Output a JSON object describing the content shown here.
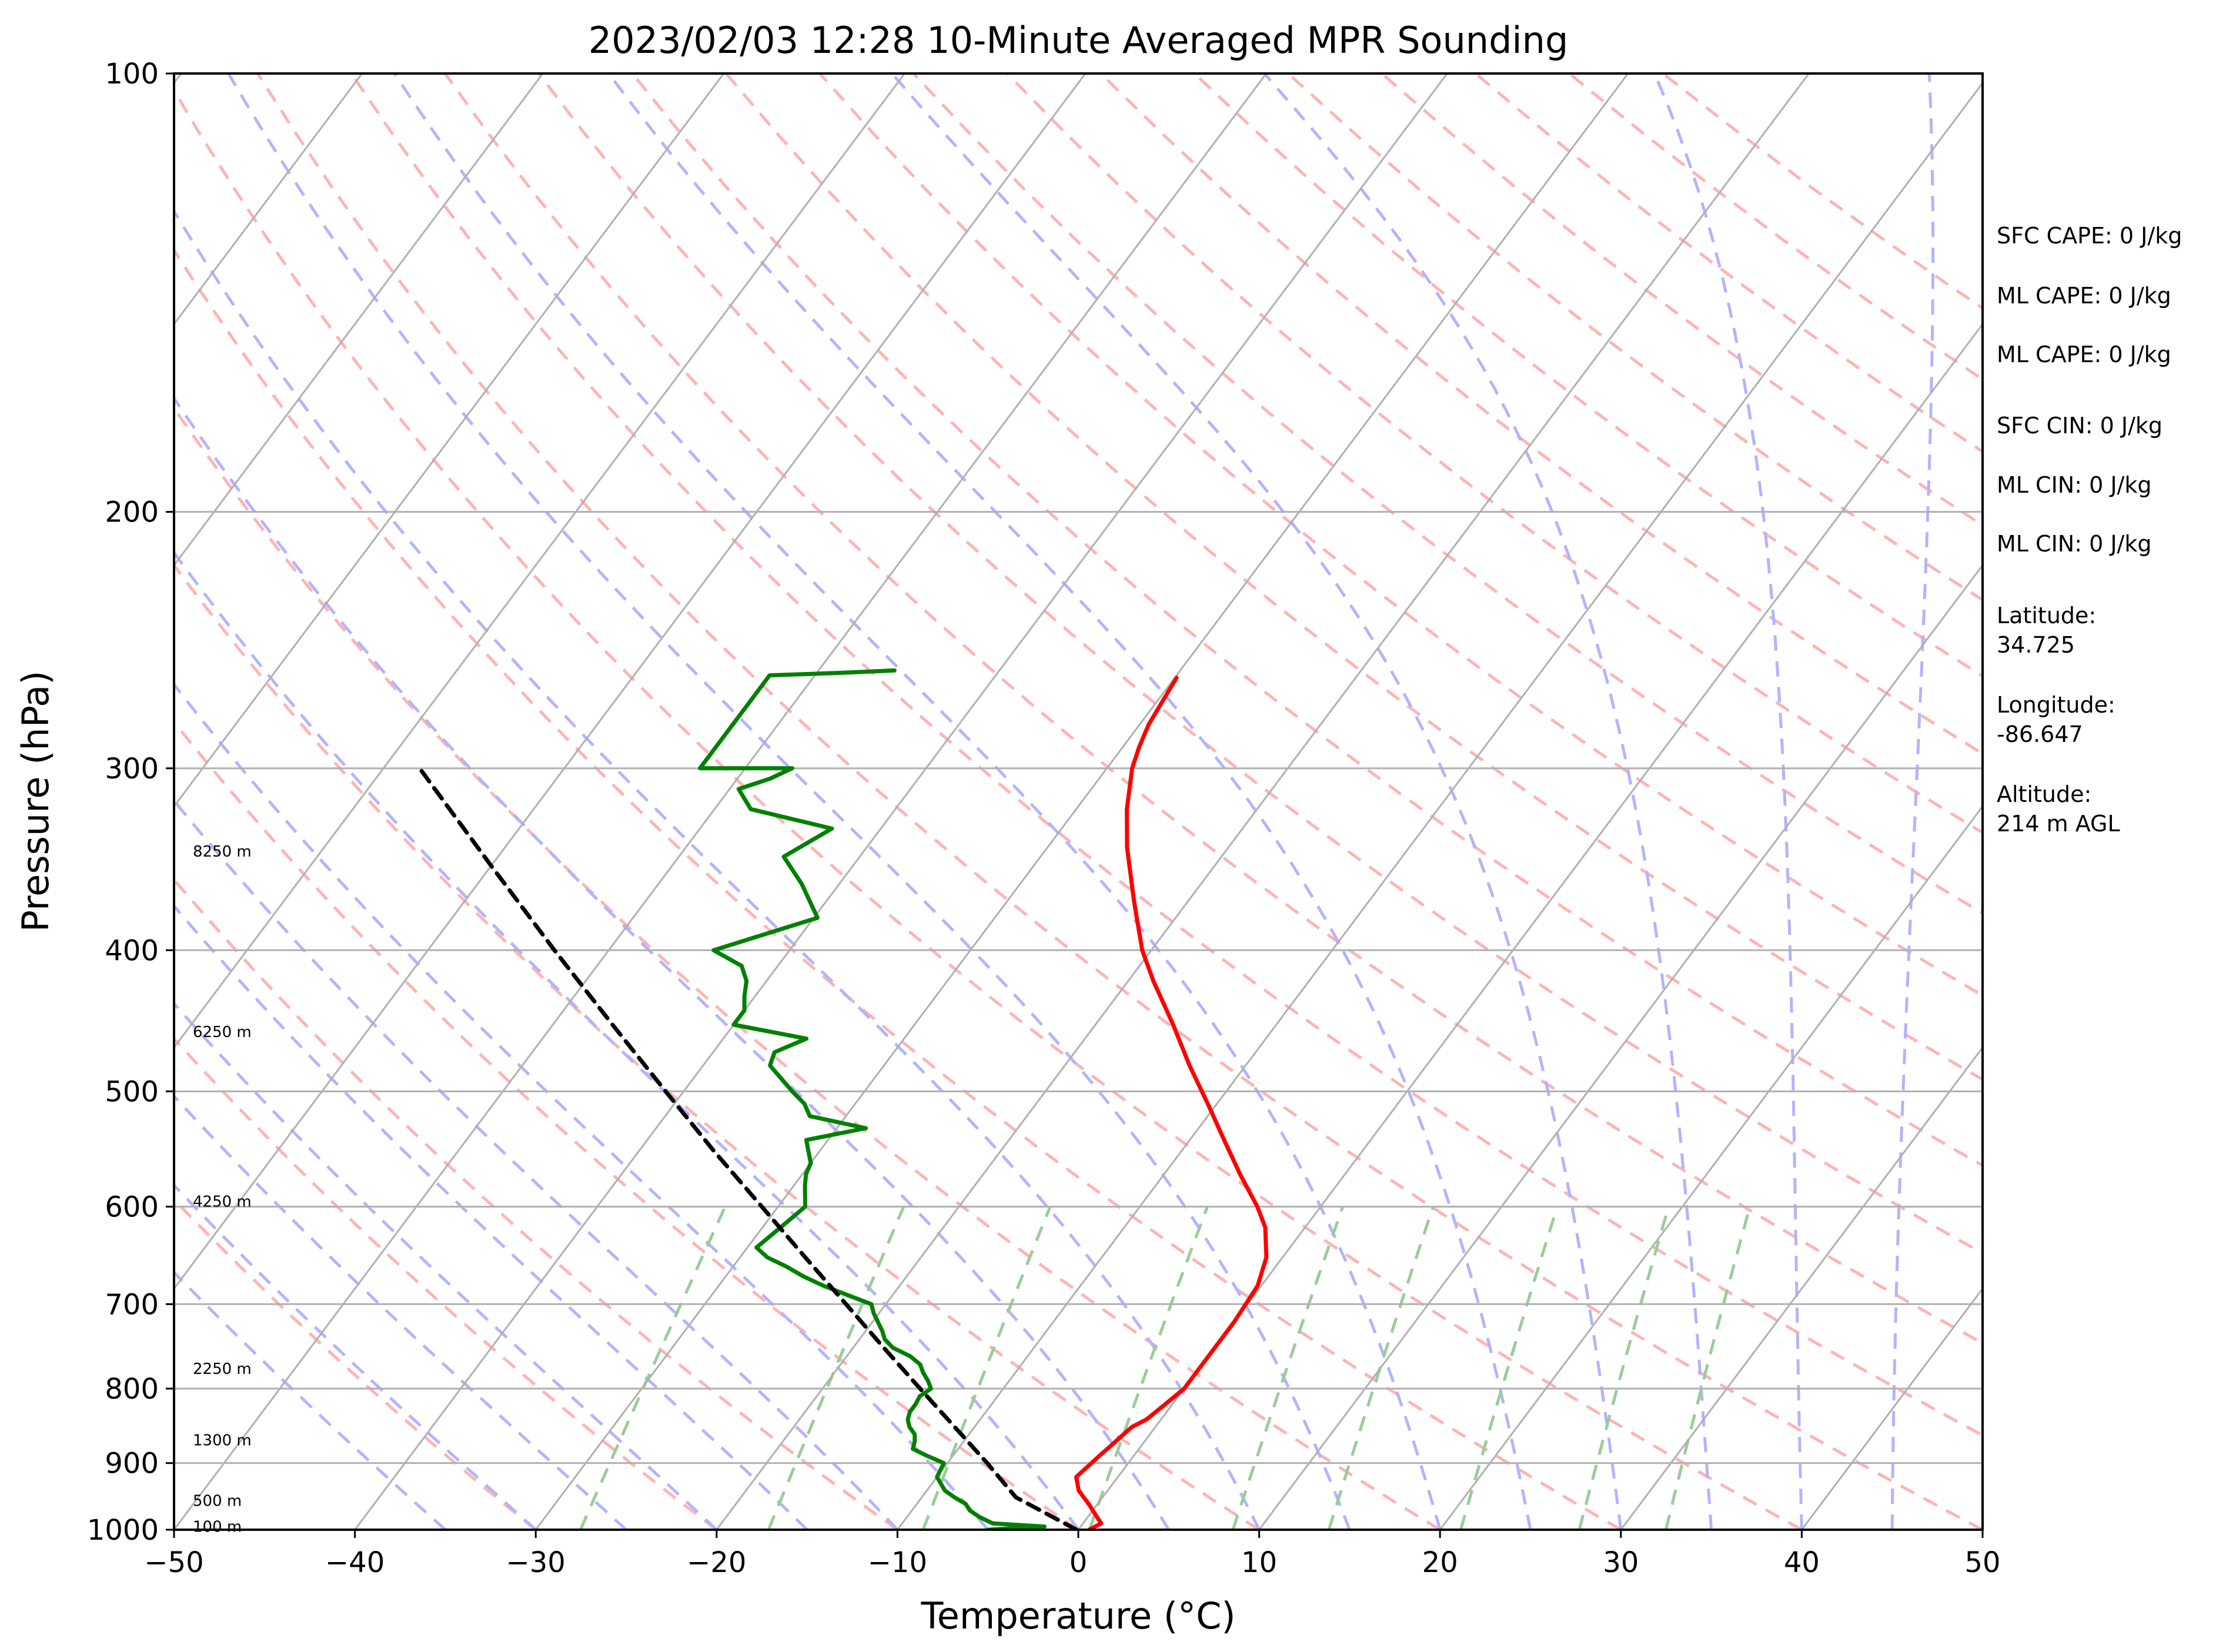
{
  "chart_data": {
    "type": "line",
    "title": "2023/02/03 12:28 10-Minute Averaged MPR Sounding",
    "xlabel": "Temperature (°C)",
    "ylabel": "Pressure (hPa)",
    "xlim": [
      -50,
      50
    ],
    "ylim": [
      1000,
      100
    ],
    "y_scale": "log",
    "skew": "skew-T",
    "grid": true,
    "x_ticks": [
      "−50",
      "−40",
      "−30",
      "−20",
      "−10",
      "0",
      "10",
      "20",
      "30",
      "40",
      "50"
    ],
    "y_ticks": [
      "100",
      "200",
      "300",
      "400",
      "500",
      "600",
      "700",
      "800",
      "900",
      "1000"
    ],
    "height_labels": [
      {
        "text": "100 m",
        "p": 995
      },
      {
        "text": "500 m",
        "p": 955
      },
      {
        "text": "1300 m",
        "p": 868
      },
      {
        "text": "2250 m",
        "p": 775
      },
      {
        "text": "4250 m",
        "p": 595
      },
      {
        "text": "6250 m",
        "p": 455
      },
      {
        "text": "8250 m",
        "p": 342
      }
    ],
    "series": [
      {
        "color": "#ff0000",
        "points": [
          [
            1000,
            0.6
          ],
          [
            990,
            1.0
          ],
          [
            980,
            0.5
          ],
          [
            960,
            -0.5
          ],
          [
            940,
            -1.6
          ],
          [
            920,
            -2.3
          ],
          [
            905,
            -2.1
          ],
          [
            890,
            -1.9
          ],
          [
            870,
            -1.6
          ],
          [
            850,
            -1.3
          ],
          [
            840,
            -0.8
          ],
          [
            825,
            -0.5
          ],
          [
            800,
            0.0
          ],
          [
            780,
            0.0
          ],
          [
            750,
            0.0
          ],
          [
            720,
            0.0
          ],
          [
            680,
            -0.2
          ],
          [
            650,
            -0.9
          ],
          [
            620,
            -2.2
          ],
          [
            600,
            -3.5
          ],
          [
            570,
            -5.8
          ],
          [
            540,
            -8.1
          ],
          [
            510,
            -10.5
          ],
          [
            480,
            -13.1
          ],
          [
            450,
            -15.7
          ],
          [
            420,
            -18.6
          ],
          [
            400,
            -20.5
          ],
          [
            370,
            -23.0
          ],
          [
            340,
            -25.6
          ],
          [
            320,
            -27.2
          ],
          [
            300,
            -28.6
          ],
          [
            290,
            -29.1
          ],
          [
            280,
            -29.5
          ],
          [
            270,
            -29.7
          ],
          [
            260,
            -29.9
          ]
        ]
      },
      {
        "color": "#008000",
        "points": [
          [
            1000,
            -5.0
          ],
          [
            995,
            -2.0
          ],
          [
            990,
            -5.0
          ],
          [
            980,
            -6.0
          ],
          [
            970,
            -6.8
          ],
          [
            960,
            -7.3
          ],
          [
            950,
            -8.2
          ],
          [
            940,
            -9.0
          ],
          [
            930,
            -9.5
          ],
          [
            920,
            -10.0
          ],
          [
            910,
            -10.1
          ],
          [
            900,
            -10.2
          ],
          [
            890,
            -11.4
          ],
          [
            880,
            -12.5
          ],
          [
            870,
            -12.7
          ],
          [
            860,
            -13.0
          ],
          [
            850,
            -13.6
          ],
          [
            840,
            -14.0
          ],
          [
            830,
            -14.2
          ],
          [
            820,
            -14.2
          ],
          [
            810,
            -14.3
          ],
          [
            800,
            -14.0
          ],
          [
            790,
            -14.5
          ],
          [
            780,
            -15.1
          ],
          [
            770,
            -15.6
          ],
          [
            760,
            -16.5
          ],
          [
            750,
            -17.8
          ],
          [
            740,
            -18.6
          ],
          [
            730,
            -19.1
          ],
          [
            720,
            -19.7
          ],
          [
            710,
            -20.3
          ],
          [
            700,
            -20.8
          ],
          [
            690,
            -22.5
          ],
          [
            680,
            -24.2
          ],
          [
            670,
            -25.7
          ],
          [
            660,
            -27.0
          ],
          [
            650,
            -28.5
          ],
          [
            640,
            -29.5
          ],
          [
            620,
            -29.0
          ],
          [
            600,
            -28.5
          ],
          [
            580,
            -29.4
          ],
          [
            570,
            -29.8
          ],
          [
            560,
            -30.0
          ],
          [
            550,
            -30.6
          ],
          [
            540,
            -31.2
          ],
          [
            530,
            -28.4
          ],
          [
            520,
            -32.0
          ],
          [
            510,
            -32.8
          ],
          [
            500,
            -34.0
          ],
          [
            480,
            -36.3
          ],
          [
            470,
            -36.6
          ],
          [
            460,
            -35.4
          ],
          [
            450,
            -40.0
          ],
          [
            440,
            -40.0
          ],
          [
            430,
            -40.6
          ],
          [
            420,
            -41.1
          ],
          [
            410,
            -42.0
          ],
          [
            400,
            -44.2
          ],
          [
            380,
            -39.8
          ],
          [
            360,
            -42.1
          ],
          [
            345,
            -44.2
          ],
          [
            330,
            -42.7
          ],
          [
            320,
            -48.0
          ],
          [
            310,
            -49.5
          ],
          [
            305,
            -48.2
          ],
          [
            300,
            -47.4
          ],
          [
            300,
            -52.5
          ],
          [
            259,
            -52.5
          ],
          [
            258,
            -48.8
          ],
          [
            257,
            -45.8
          ]
        ]
      },
      {
        "color": "#000000",
        "dashed": true,
        "points": [
          [
            1000,
            -0.1
          ],
          [
            950,
            -4.8
          ],
          [
            900,
            -7.8
          ],
          [
            850,
            -11.1
          ],
          [
            800,
            -14.6
          ],
          [
            750,
            -18.3
          ],
          [
            700,
            -22.2
          ],
          [
            650,
            -26.4
          ],
          [
            600,
            -30.9
          ],
          [
            550,
            -35.8
          ],
          [
            500,
            -41.0
          ],
          [
            450,
            -46.7
          ],
          [
            400,
            -53.0
          ],
          [
            350,
            -60.0
          ],
          [
            300,
            -68.0
          ]
        ]
      }
    ],
    "background_lines": {
      "isotherms": [
        -150,
        -140,
        -130,
        -120,
        -110,
        -100,
        -90,
        -80,
        -70,
        -60,
        -50,
        -40,
        -30,
        -20,
        -10,
        0,
        10,
        20,
        30,
        40,
        50
      ],
      "dry_adiabats_theta_k": [
        -30,
        -20,
        -10,
        0,
        10,
        20,
        30,
        40,
        50,
        60,
        70,
        80,
        90,
        100,
        110,
        120,
        130,
        140,
        150,
        160,
        170,
        180,
        190,
        200
      ],
      "moist_adiabats_start_c": [
        -35,
        -30,
        -25,
        -20,
        -15,
        -10,
        -5,
        0,
        5,
        10,
        15,
        20,
        25,
        30,
        35,
        40,
        45
      ],
      "mixing_ratios_g_kg": [
        0.4,
        1,
        2,
        4,
        7,
        10,
        16,
        24,
        32
      ]
    },
    "colors": {
      "temperature": "#ff0000",
      "dewpoint": "#008000",
      "parcel": "#000000",
      "isotherm": "#b0b0b0",
      "dry_adiabat": "#ffb3b3",
      "moist_adiabat": "#b3b3ff",
      "mixing_ratio": "#99cc99"
    }
  },
  "annotations": [
    {
      "text": "SFC CAPE: 0 J/kg"
    },
    {
      "text": "ML CAPE: 0 J/kg"
    },
    {
      "text": "ML CAPE: 0 J/kg"
    },
    {
      "text": "SFC CIN: 0 J/kg"
    },
    {
      "text": "ML CIN: 0 J/kg"
    },
    {
      "text": "ML CIN: 0 J/kg"
    },
    {
      "text": "Latitude:"
    },
    {
      "text": "34.725"
    },
    {
      "text": "Longitude:"
    },
    {
      "text": "-86.647"
    },
    {
      "text": "Altitude:"
    },
    {
      "text": "214 m AGL"
    }
  ]
}
